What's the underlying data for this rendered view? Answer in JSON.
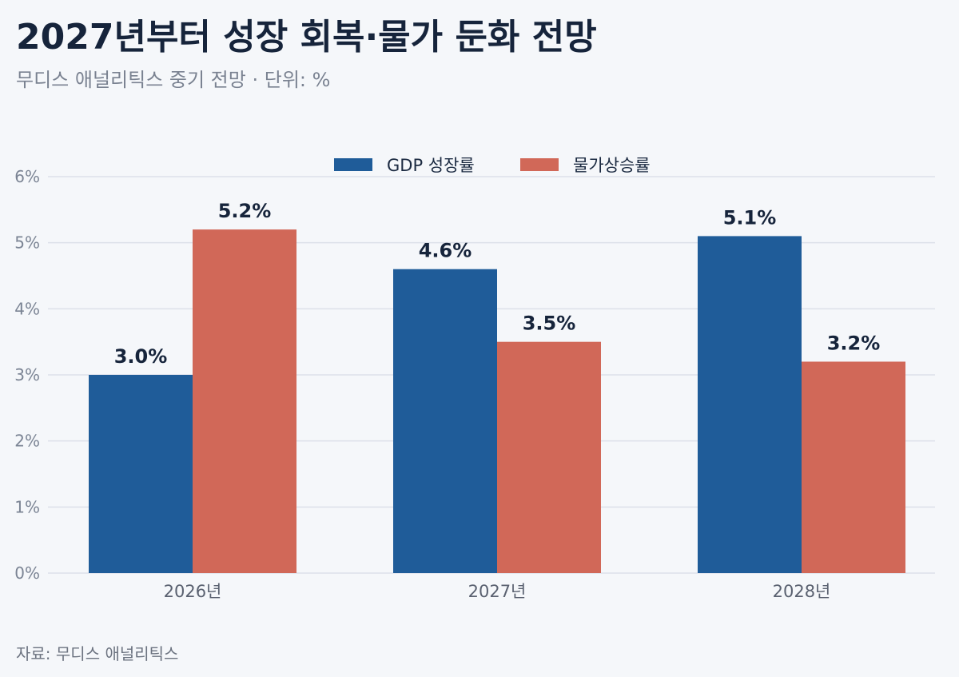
{
  "header": {
    "title": "2027년부터 성장 회복·물가 둔화 전망",
    "subtitle": "무디스 애널리틱스 중기 전망 · 단위: %"
  },
  "footer": {
    "source": "자료: 무디스 애널리틱스"
  },
  "colors": {
    "gdp": "#1f5c99",
    "inflation": "#d16858",
    "grid": "#dde1ea",
    "background": "#f5f7fa"
  },
  "chart_data": {
    "type": "bar",
    "categories": [
      "2026년",
      "2027년",
      "2028년"
    ],
    "series": [
      {
        "name": "GDP 성장률",
        "values": [
          3.0,
          4.6,
          5.1
        ],
        "labels": [
          "3.0%",
          "4.6%",
          "5.1%"
        ]
      },
      {
        "name": "물가상승률",
        "values": [
          5.2,
          3.5,
          3.2
        ],
        "labels": [
          "5.2%",
          "3.5%",
          "3.2%"
        ]
      }
    ],
    "ylim": [
      0,
      6
    ],
    "yticks": [
      0,
      1,
      2,
      3,
      4,
      5,
      6
    ],
    "ytick_labels": [
      "0%",
      "1%",
      "2%",
      "3%",
      "4%",
      "5%",
      "6%"
    ],
    "legend_position": "top-center",
    "grid": true
  }
}
